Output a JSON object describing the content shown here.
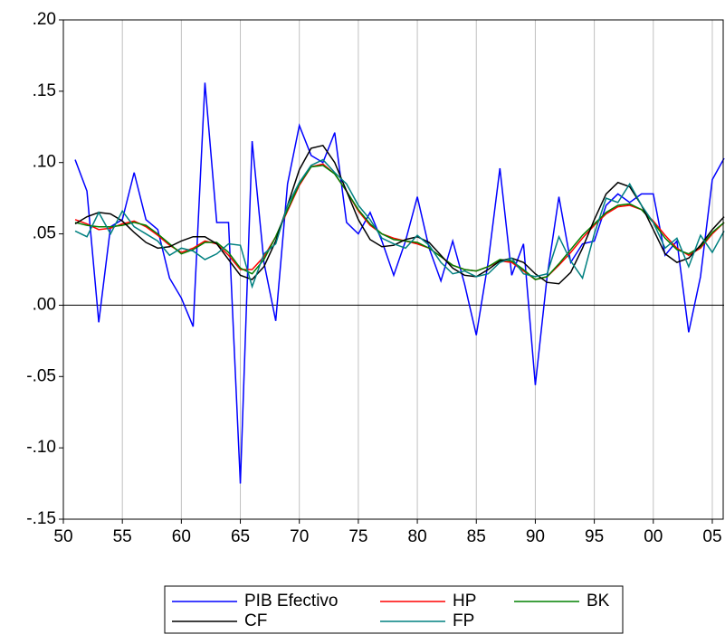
{
  "chart_data": {
    "type": "line",
    "x": [
      1951,
      1952,
      1953,
      1954,
      1955,
      1956,
      1957,
      1958,
      1959,
      1960,
      1961,
      1962,
      1963,
      1964,
      1965,
      1966,
      1967,
      1968,
      1969,
      1970,
      1971,
      1972,
      1973,
      1974,
      1975,
      1976,
      1977,
      1978,
      1979,
      1980,
      1981,
      1982,
      1983,
      1984,
      1985,
      1986,
      1987,
      1988,
      1989,
      1990,
      1991,
      1992,
      1993,
      1994,
      1995,
      1996,
      1997,
      1998,
      1999,
      2000,
      2001,
      2002,
      2003,
      2004,
      2005,
      2006
    ],
    "xlim": [
      1950,
      2006
    ],
    "xticks": [
      {
        "value": 1950,
        "label": "50"
      },
      {
        "value": 1955,
        "label": "55"
      },
      {
        "value": 1960,
        "label": "60"
      },
      {
        "value": 1965,
        "label": "65"
      },
      {
        "value": 1970,
        "label": "70"
      },
      {
        "value": 1975,
        "label": "75"
      },
      {
        "value": 1980,
        "label": "80"
      },
      {
        "value": 1985,
        "label": "85"
      },
      {
        "value": 1990,
        "label": "90"
      },
      {
        "value": 1995,
        "label": "95"
      },
      {
        "value": 2000,
        "label": "00"
      },
      {
        "value": 2005,
        "label": "05"
      }
    ],
    "ylim": [
      -0.15,
      0.2
    ],
    "yticks": [
      {
        "value": -0.15,
        "label": "-.15"
      },
      {
        "value": -0.1,
        "label": "-.10"
      },
      {
        "value": -0.05,
        "label": "-.05"
      },
      {
        "value": 0,
        "label": ".00"
      },
      {
        "value": 0.05,
        "label": ".05"
      },
      {
        "value": 0.1,
        "label": ".10"
      },
      {
        "value": 0.15,
        "label": ".15"
      },
      {
        "value": 0.2,
        "label": ".20"
      }
    ],
    "grid": "x",
    "legend": "bottom",
    "series": [
      {
        "name": "PIB Efectivo",
        "color": "#0000ff",
        "values": [
          0.102,
          0.08,
          -0.012,
          0.055,
          0.06,
          0.093,
          0.06,
          0.053,
          0.019,
          0.005,
          -0.015,
          0.156,
          0.058,
          0.058,
          -0.125,
          0.115,
          0.03,
          -0.011,
          0.085,
          0.126,
          0.105,
          0.1,
          0.121,
          0.058,
          0.05,
          0.065,
          0.045,
          0.021,
          0.045,
          0.076,
          0.04,
          0.017,
          0.045,
          0.015,
          -0.021,
          0.03,
          0.096,
          0.021,
          0.043,
          -0.056,
          0.02,
          0.076,
          0.03,
          0.043,
          0.045,
          0.07,
          0.078,
          0.072,
          0.078,
          0.078,
          0.035,
          0.045,
          -0.019,
          0.02,
          0.088,
          0.103
        ]
      },
      {
        "name": "HP",
        "color": "#ff0000",
        "values": [
          0.06,
          0.057,
          0.053,
          0.054,
          0.057,
          0.059,
          0.055,
          0.049,
          0.042,
          0.037,
          0.04,
          0.045,
          0.043,
          0.035,
          0.025,
          0.025,
          0.034,
          0.048,
          0.066,
          0.084,
          0.097,
          0.099,
          0.092,
          0.08,
          0.066,
          0.056,
          0.05,
          0.047,
          0.045,
          0.043,
          0.04,
          0.034,
          0.028,
          0.025,
          0.024,
          0.027,
          0.031,
          0.03,
          0.024,
          0.018,
          0.02,
          0.028,
          0.037,
          0.047,
          0.056,
          0.064,
          0.069,
          0.07,
          0.067,
          0.059,
          0.049,
          0.04,
          0.035,
          0.04,
          0.05,
          0.058
        ]
      },
      {
        "name": "BK",
        "color": "#008000",
        "values": [
          0.058,
          0.056,
          0.055,
          0.055,
          0.056,
          0.058,
          0.056,
          0.05,
          0.043,
          0.036,
          0.039,
          0.044,
          0.044,
          0.037,
          0.026,
          0.022,
          0.032,
          0.048,
          0.067,
          0.085,
          0.097,
          0.098,
          0.092,
          0.08,
          0.067,
          0.057,
          0.05,
          0.046,
          0.045,
          0.044,
          0.04,
          0.034,
          0.028,
          0.025,
          0.024,
          0.027,
          0.032,
          0.031,
          0.025,
          0.018,
          0.02,
          0.029,
          0.039,
          0.049,
          0.057,
          0.065,
          0.07,
          0.071,
          0.067,
          0.058,
          0.047,
          0.039,
          0.036,
          0.041,
          0.051,
          0.058
        ]
      },
      {
        "name": "CF",
        "color": "#000000",
        "values": [
          0.057,
          0.062,
          0.065,
          0.064,
          0.059,
          0.051,
          0.044,
          0.04,
          0.041,
          0.045,
          0.048,
          0.048,
          0.043,
          0.032,
          0.021,
          0.018,
          0.027,
          0.045,
          0.07,
          0.095,
          0.11,
          0.112,
          0.1,
          0.08,
          0.06,
          0.046,
          0.041,
          0.042,
          0.046,
          0.048,
          0.044,
          0.035,
          0.026,
          0.021,
          0.02,
          0.025,
          0.031,
          0.033,
          0.03,
          0.022,
          0.016,
          0.015,
          0.023,
          0.04,
          0.06,
          0.078,
          0.086,
          0.083,
          0.07,
          0.053,
          0.036,
          0.03,
          0.033,
          0.042,
          0.053,
          0.062
        ]
      },
      {
        "name": "FP",
        "color": "#008080",
        "values": [
          0.052,
          0.048,
          0.065,
          0.05,
          0.066,
          0.055,
          0.05,
          0.045,
          0.035,
          0.04,
          0.038,
          0.032,
          0.036,
          0.043,
          0.042,
          0.013,
          0.036,
          0.043,
          0.07,
          0.086,
          0.098,
          0.102,
          0.093,
          0.085,
          0.07,
          0.06,
          0.047,
          0.043,
          0.04,
          0.049,
          0.042,
          0.03,
          0.022,
          0.024,
          0.02,
          0.022,
          0.03,
          0.033,
          0.022,
          0.02,
          0.022,
          0.048,
          0.031,
          0.019,
          0.05,
          0.075,
          0.072,
          0.085,
          0.07,
          0.058,
          0.04,
          0.047,
          0.027,
          0.049,
          0.037,
          0.052
        ]
      }
    ]
  }
}
